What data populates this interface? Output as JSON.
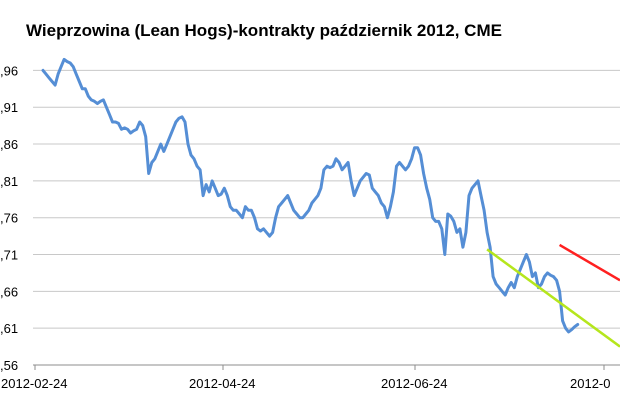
{
  "chart_data": {
    "type": "line",
    "title": "Wieprzowina (Lean Hogs)-kontrakty październik 2012, CME",
    "xlabel": "",
    "ylabel": "",
    "x_ticks": [
      "2012-02-24",
      "2012-04-24",
      "2012-06-24",
      "2012-0"
    ],
    "y_ticks": [
      ",96",
      ",91",
      ",86",
      ",81",
      ",76",
      ",71",
      ",66",
      ",61",
      ",56"
    ],
    "y_tick_values": [
      0.96,
      0.91,
      0.86,
      0.81,
      0.76,
      0.71,
      0.66,
      0.61,
      0.56
    ],
    "ylim": [
      0.56,
      0.985
    ],
    "xlim_index": [
      0,
      191
    ],
    "grid": true,
    "legend": "none",
    "series": [
      {
        "color": "#558ed5",
        "values": [
          0.96,
          0.955,
          0.95,
          0.945,
          0.94,
          0.955,
          0.965,
          0.975,
          0.972,
          0.97,
          0.965,
          0.955,
          0.945,
          0.935,
          0.935,
          0.925,
          0.92,
          0.918,
          0.915,
          0.918,
          0.92,
          0.91,
          0.9,
          0.89,
          0.89,
          0.888,
          0.88,
          0.882,
          0.88,
          0.875,
          0.878,
          0.88,
          0.89,
          0.885,
          0.87,
          0.82,
          0.835,
          0.84,
          0.85,
          0.86,
          0.85,
          0.86,
          0.87,
          0.88,
          0.89,
          0.895,
          0.897,
          0.89,
          0.86,
          0.845,
          0.84,
          0.83,
          0.825,
          0.79,
          0.805,
          0.795,
          0.81,
          0.8,
          0.79,
          0.792,
          0.8,
          0.79,
          0.775,
          0.77,
          0.77,
          0.765,
          0.76,
          0.775,
          0.77,
          0.77,
          0.76,
          0.745,
          0.742,
          0.745,
          0.74,
          0.735,
          0.74,
          0.76,
          0.775,
          0.78,
          0.785,
          0.79,
          0.78,
          0.77,
          0.765,
          0.76,
          0.76,
          0.765,
          0.77,
          0.78,
          0.785,
          0.79,
          0.8,
          0.825,
          0.83,
          0.828,
          0.83,
          0.84,
          0.835,
          0.825,
          0.83,
          0.835,
          0.81,
          0.79,
          0.8,
          0.81,
          0.815,
          0.82,
          0.818,
          0.8,
          0.795,
          0.79,
          0.78,
          0.775,
          0.76,
          0.775,
          0.795,
          0.83,
          0.835,
          0.83,
          0.825,
          0.83,
          0.84,
          0.855,
          0.855,
          0.845,
          0.82,
          0.8,
          0.785,
          0.76,
          0.755,
          0.755,
          0.745,
          0.71,
          0.765,
          0.762,
          0.755,
          0.74,
          0.745,
          0.72,
          0.74,
          0.79,
          0.8,
          0.805,
          0.81,
          0.79,
          0.77,
          0.74,
          0.72,
          0.68,
          0.67,
          0.665,
          0.66,
          0.655,
          0.665,
          0.672,
          0.665,
          0.68,
          0.69,
          0.7,
          0.71,
          0.7,
          0.68,
          0.685,
          0.665,
          0.67,
          0.68,
          0.685,
          0.682,
          0.68,
          0.675,
          0.66,
          0.62,
          0.61,
          0.605,
          0.608,
          0.612,
          0.615
        ]
      }
    ],
    "trendlines": [
      {
        "color": "#ff2020",
        "from": [
          171,
          0.723
        ],
        "to": [
          191,
          0.675
        ]
      },
      {
        "color": "#b5e61d",
        "from": [
          147,
          0.717
        ],
        "to": [
          191,
          0.585
        ]
      }
    ]
  }
}
